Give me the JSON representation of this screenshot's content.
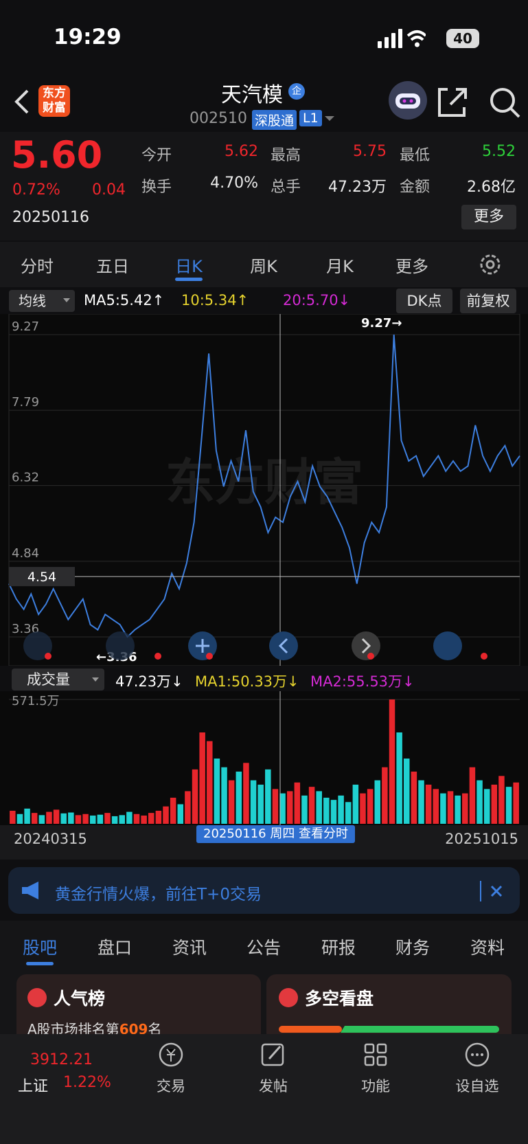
{
  "status": {
    "time": "19:29",
    "battery": "40"
  },
  "header": {
    "logo": "东方财富",
    "title": "天汽模",
    "badge": "企",
    "code": "002510",
    "tag": "深股通",
    "level": "L1"
  },
  "quote": {
    "price": "5.60",
    "change_pct": "0.72%",
    "change": "0.04",
    "date": "20250116",
    "more": "更多",
    "fields": [
      {
        "label": "今开",
        "value": "5.62"
      },
      {
        "label": "最高",
        "value": "5.75"
      },
      {
        "label": "最低",
        "value": "5.52"
      },
      {
        "label": "换手",
        "value": "4.70%"
      },
      {
        "label": "总手",
        "value": "47.23万"
      },
      {
        "label": "金额",
        "value": "2.68亿"
      }
    ]
  },
  "tabs": {
    "items": [
      "分时",
      "五日",
      "日K",
      "周K",
      "月K",
      "更多"
    ],
    "active": 2
  },
  "ma_bar": {
    "selector": "均线",
    "ma5": "MA5:5.42↑",
    "ma10": "10:5.34↑",
    "ma20": "20:5.70↓",
    "dk": "DK点",
    "adjust": "前复权"
  },
  "volume_bar": {
    "selector": "成交量",
    "vol": "47.23万↓",
    "ma1": "MA1:50.33万↓",
    "ma2": "MA2:55.53万↓"
  },
  "chart_data": [
    {
      "type": "line",
      "ylim": [
        3.36,
        9.27
      ],
      "yticks": [
        9.27,
        7.79,
        6.32,
        4.84,
        3.36
      ],
      "color": "#3d7fe0",
      "values": [
        4.4,
        4.1,
        3.9,
        4.2,
        3.8,
        4.0,
        4.3,
        4.0,
        3.7,
        3.9,
        4.1,
        3.6,
        3.5,
        3.8,
        3.7,
        3.6,
        3.36,
        3.5,
        3.6,
        3.7,
        3.9,
        4.1,
        4.6,
        4.3,
        4.8,
        5.6,
        7.2,
        8.9,
        7.0,
        6.3,
        6.8,
        6.4,
        7.4,
        6.2,
        5.9,
        5.4,
        5.7,
        5.6,
        6.1,
        6.4,
        6.0,
        6.7,
        6.3,
        6.1,
        5.8,
        5.5,
        5.1,
        4.4,
        5.2,
        5.6,
        5.4,
        5.9,
        9.27,
        7.2,
        6.8,
        6.9,
        6.5,
        6.7,
        6.9,
        6.6,
        6.8,
        6.6,
        6.7,
        7.5,
        6.9,
        6.6,
        6.9,
        7.1,
        6.7,
        6.9
      ],
      "crosshair": 4.54,
      "max_label": "9.27→",
      "min_label": "←3.36",
      "watermark": "东方财富"
    },
    {
      "type": "bar",
      "ylim": [
        0,
        571.5
      ],
      "yticks": [
        {
          "value": 571.5,
          "label": "571.5万"
        }
      ],
      "up_color": "#e8262c",
      "down_color": "#20d0d0",
      "values": [
        60,
        45,
        70,
        50,
        40,
        55,
        65,
        48,
        52,
        40,
        45,
        38,
        42,
        50,
        35,
        40,
        55,
        45,
        38,
        50,
        60,
        80,
        120,
        90,
        150,
        250,
        420,
        380,
        300,
        260,
        200,
        240,
        280,
        200,
        180,
        250,
        160,
        140,
        150,
        190,
        130,
        170,
        150,
        120,
        110,
        130,
        100,
        180,
        140,
        160,
        200,
        260,
        571.5,
        420,
        300,
        240,
        200,
        180,
        160,
        140,
        150,
        130,
        140,
        260,
        200,
        160,
        180,
        220,
        170,
        190
      ],
      "x_labels": [
        "20240315",
        "20251015"
      ],
      "tooltip": "20250116 周四 查看分时"
    }
  ],
  "banner": {
    "text": "黄金行情火爆，前往T+0交易"
  },
  "sections": {
    "items": [
      "股吧",
      "盘口",
      "资讯",
      "公告",
      "研报",
      "财务",
      "资料"
    ],
    "active": 0
  },
  "cards": {
    "popular": "人气榜",
    "rank_prefix": "A股市场排名第",
    "rank": "609",
    "rank_suffix": "名",
    "sentiment": "多空看盘"
  },
  "bottom_nav": {
    "index_value": "3912.21",
    "index_name": "上证",
    "index_change": "1.22%",
    "items": [
      "交易",
      "发帖",
      "功能",
      "设自选"
    ]
  }
}
